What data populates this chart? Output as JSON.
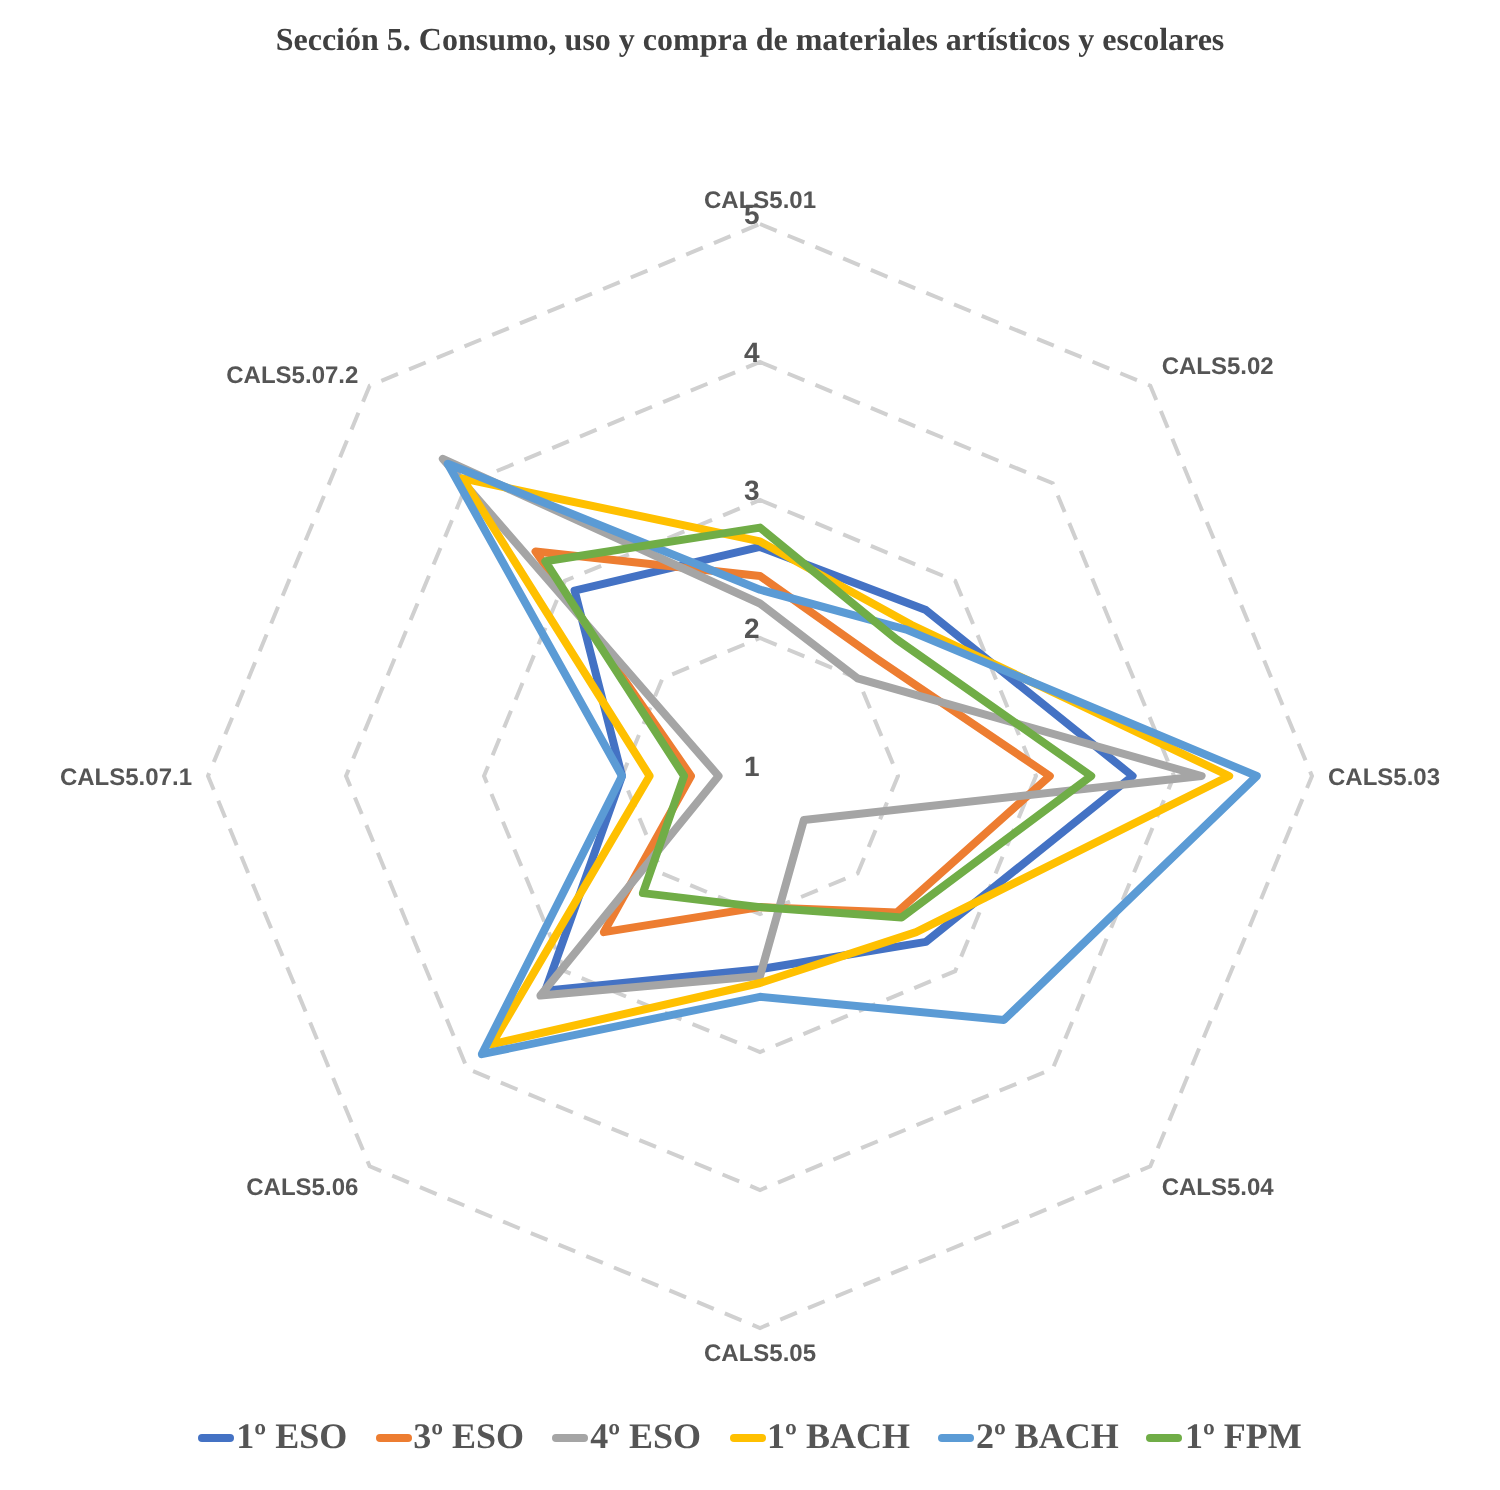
{
  "chart_data": {
    "type": "radar",
    "title": "Sección 5. Consumo, uso y compra de materiales artísticos y escolares",
    "categories": [
      "CALS5.01",
      "CALS5.02",
      "CALS5.03",
      "CALS5.04",
      "CALS5.05",
      "CALS5.06",
      "CALS5.07.1",
      "CALS5.07.2"
    ],
    "ylim": [
      1,
      5
    ],
    "yticks": [
      1,
      2,
      3,
      4,
      5
    ],
    "grid": true,
    "legend": "bottom",
    "line_style": "solid",
    "marker": "none",
    "series": [
      {
        "name": "1º ESO",
        "color": "#4472c4",
        "values": [
          2.66,
          2.7,
          3.7,
          2.7,
          2.4,
          3.2,
          2.0,
          2.9
        ]
      },
      {
        "name": "3º ESO",
        "color": "#ed7d31",
        "values": [
          2.45,
          2.2,
          3.1,
          2.4,
          1.95,
          2.6,
          1.5,
          3.3
        ]
      },
      {
        "name": "4º ESO",
        "color": "#a5a5a5",
        "values": [
          2.25,
          2.0,
          4.2,
          1.45,
          2.45,
          3.25,
          1.3,
          4.25
        ]
      },
      {
        "name": "1º BACH",
        "color": "#ffc000",
        "values": [
          2.7,
          2.55,
          4.4,
          2.6,
          2.5,
          3.75,
          1.8,
          4.05
        ]
      },
      {
        "name": "2º BACH",
        "color": "#5b9bd5",
        "values": [
          2.35,
          2.5,
          4.6,
          3.5,
          2.6,
          3.85,
          2.0,
          4.2
        ]
      },
      {
        "name": "1º FPM",
        "color": "#70ad47",
        "values": [
          2.8,
          2.4,
          3.4,
          2.45,
          1.95,
          2.2,
          1.55,
          3.2
        ]
      }
    ]
  }
}
